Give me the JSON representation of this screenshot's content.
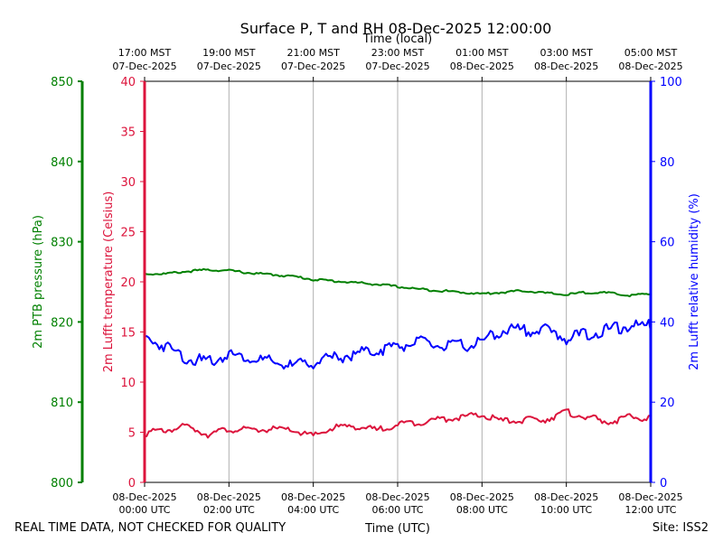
{
  "title": "Surface P, T and RH 08-Dec-2025 12:00:00",
  "top_axis_label": "Time (local)",
  "bottom_axis_label": "Time (UTC)",
  "footer_left": "REAL TIME DATA, NOT CHECKED FOR QUALITY",
  "footer_right": "Site: ISS2",
  "colors": {
    "pressure": "#008000",
    "temperature": "#dc143c",
    "humidity": "#0000ff",
    "grid": "#b0b0b0",
    "frame": "#000000"
  },
  "chart_data": {
    "type": "line",
    "title": "Surface P, T and RH 08-Dec-2025 12:00:00",
    "xlabel": "Time (UTC)",
    "xlabel_top": "Time (local)",
    "xlim": [
      "2025-12-08 00:00 UTC",
      "2025-12-08 12:00 UTC"
    ],
    "grid": "vertical",
    "bottom_ticks": [
      [
        "08-Dec-2025",
        "00:00 UTC"
      ],
      [
        "08-Dec-2025",
        "02:00 UTC"
      ],
      [
        "08-Dec-2025",
        "04:00 UTC"
      ],
      [
        "08-Dec-2025",
        "06:00 UTC"
      ],
      [
        "08-Dec-2025",
        "08:00 UTC"
      ],
      [
        "08-Dec-2025",
        "10:00 UTC"
      ],
      [
        "08-Dec-2025",
        "12:00 UTC"
      ]
    ],
    "top_ticks": [
      [
        "17:00 MST",
        "07-Dec-2025"
      ],
      [
        "19:00 MST",
        "07-Dec-2025"
      ],
      [
        "21:00 MST",
        "07-Dec-2025"
      ],
      [
        "23:00 MST",
        "07-Dec-2025"
      ],
      [
        "01:00 MST",
        "08-Dec-2025"
      ],
      [
        "03:00 MST",
        "08-Dec-2025"
      ],
      [
        "05:00 MST",
        "08-Dec-2025"
      ]
    ],
    "axes": {
      "pressure": {
        "label": "2m PTB pressure (hPa)",
        "ylim": [
          800,
          850
        ],
        "ticks": [
          800,
          810,
          820,
          830,
          840,
          850
        ]
      },
      "temperature": {
        "label": "2m Lufft temperature (Celsius)",
        "ylim": [
          0,
          40
        ],
        "ticks": [
          0,
          5,
          10,
          15,
          20,
          25,
          30,
          35,
          40
        ]
      },
      "humidity": {
        "label": "2m Lufft relative humidity (%)",
        "ylim": [
          0,
          100
        ],
        "ticks": [
          0,
          20,
          40,
          60,
          80,
          100
        ]
      }
    },
    "x_hours": [
      0,
      0.5,
      1,
      1.5,
      2,
      2.5,
      3,
      3.5,
      4,
      4.5,
      5,
      5.5,
      6,
      6.5,
      7,
      7.5,
      8,
      8.5,
      9,
      9.5,
      10,
      10.5,
      11,
      11.5,
      12
    ],
    "series": [
      {
        "axis": "pressure",
        "values": [
          826.0,
          826.0,
          826.3,
          826.5,
          826.4,
          826.1,
          825.9,
          825.7,
          825.3,
          825.1,
          824.9,
          824.7,
          824.4,
          824.1,
          823.9,
          823.7,
          823.5,
          823.7,
          823.9,
          823.6,
          823.4,
          823.7,
          823.6,
          823.3,
          823.5
        ]
      },
      {
        "axis": "temperature",
        "values": [
          4.9,
          5.2,
          5.6,
          4.8,
          5.3,
          5.2,
          5.3,
          5.2,
          4.6,
          5.5,
          5.6,
          5.2,
          5.8,
          6.0,
          6.3,
          6.5,
          6.7,
          6.1,
          6.2,
          6.3,
          7.0,
          6.5,
          6.0,
          6.5,
          6.4
        ]
      },
      {
        "axis": "humidity",
        "values": [
          36,
          34,
          31,
          30,
          32,
          31,
          30,
          29,
          30,
          31,
          32,
          33,
          34,
          35,
          34,
          34,
          35,
          38,
          38,
          38,
          36,
          37,
          38,
          39,
          39
        ]
      }
    ]
  }
}
